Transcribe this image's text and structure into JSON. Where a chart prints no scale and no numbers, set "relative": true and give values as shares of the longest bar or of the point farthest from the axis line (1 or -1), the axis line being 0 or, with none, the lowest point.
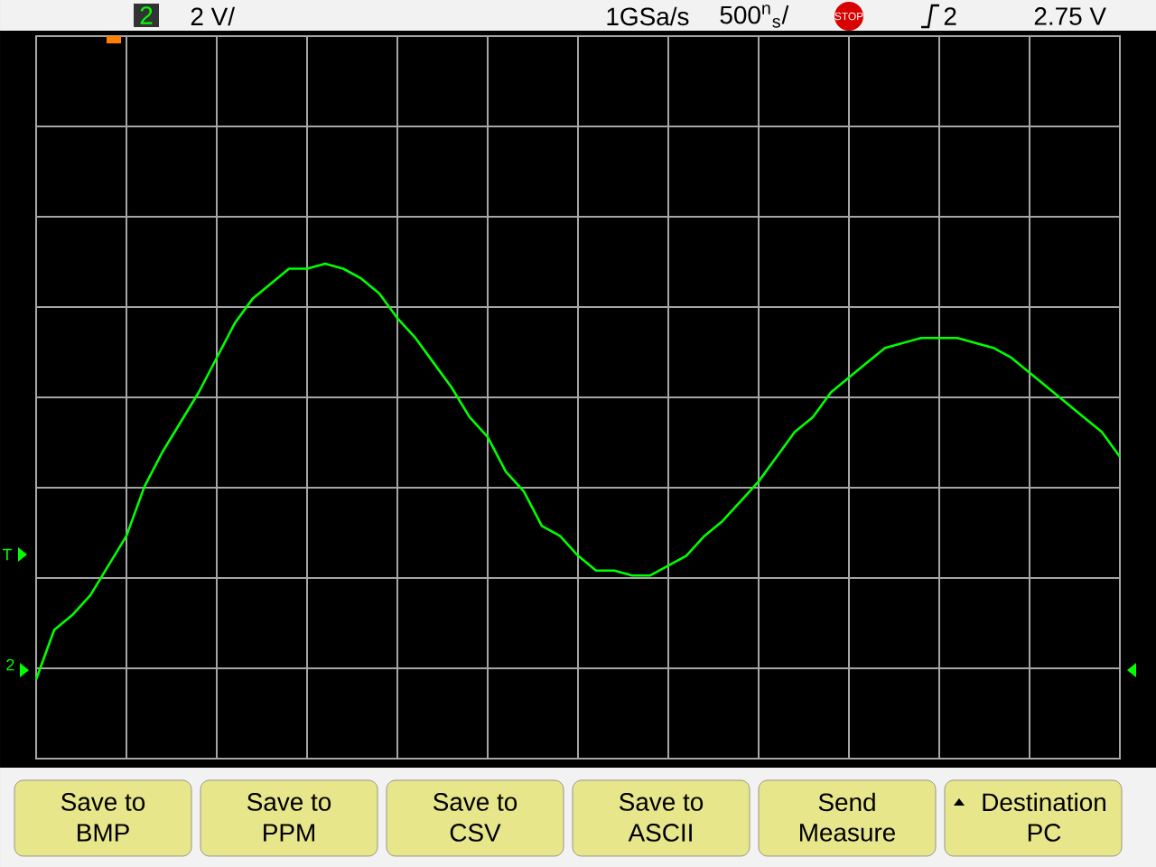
{
  "chart_data": {
    "type": "line",
    "relative": true,
    "grid": true,
    "color": "#00ff00",
    "categories": [
      null,
      null,
      null,
      null,
      null,
      null,
      null,
      null,
      null,
      null,
      null,
      null,
      null,
      null,
      null,
      null,
      null,
      null,
      null,
      null,
      null,
      null,
      null,
      null,
      null,
      null,
      null,
      null,
      null,
      null,
      null,
      null,
      null,
      null,
      null,
      null,
      null,
      null,
      null,
      null,
      null,
      null,
      null,
      null,
      null,
      null,
      null,
      null,
      null,
      null,
      null,
      null,
      null,
      null,
      null,
      null,
      null,
      null,
      null,
      null,
      null
    ],
    "values": [
      0.16,
      0.26,
      0.29,
      0.33,
      0.39,
      0.45,
      0.55,
      0.62,
      0.68,
      0.74,
      0.81,
      0.88,
      0.93,
      0.96,
      0.99,
      0.99,
      1,
      0.99,
      0.97,
      0.94,
      0.89,
      0.85,
      0.8,
      0.75,
      0.69,
      0.65,
      0.58,
      0.54,
      0.47,
      0.45,
      0.41,
      0.38,
      0.38,
      0.37,
      0.37,
      0.39,
      0.41,
      0.45,
      0.48,
      0.52,
      0.56,
      0.61,
      0.66,
      0.69,
      0.74,
      0.77,
      0.8,
      0.83,
      0.84,
      0.85,
      0.85,
      0.85,
      0.84,
      0.83,
      0.81,
      0.78,
      0.75,
      0.72,
      0.69,
      0.66,
      0.61
    ],
    "annotations": [
      "2",
      "2 V/",
      "1GSa/s",
      "500$^{n}$$_{s}$/",
      "STOP",
      "2",
      "2.75 V",
      "T",
      "2",
      "Save to",
      "BMP",
      "Save to",
      "PPM",
      "Save to",
      "CSV",
      "Save to",
      "ASCII",
      "Send",
      "Measure",
      "Destination",
      "PC"
    ]
  }
}
